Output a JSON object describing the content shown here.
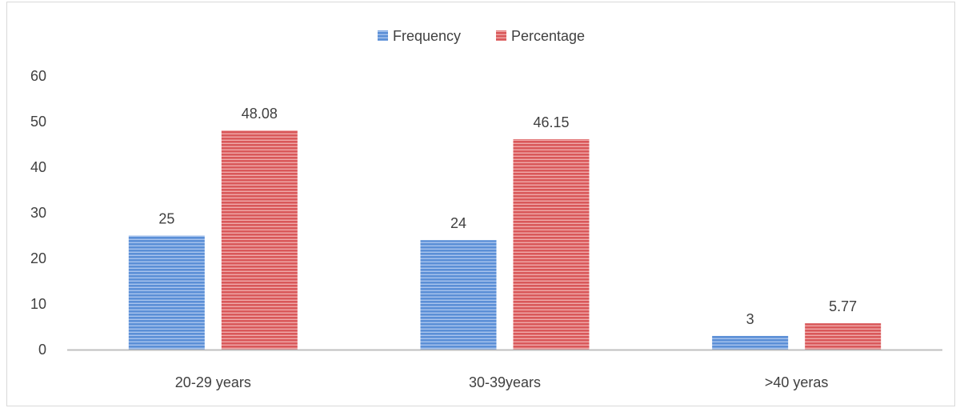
{
  "chart_data": {
    "type": "bar",
    "categories": [
      "20-29 years",
      "30-39years",
      ">40 yeras"
    ],
    "series": [
      {
        "name": "Frequency",
        "values": [
          25,
          24,
          3
        ],
        "labels": [
          "25",
          "24",
          "3"
        ],
        "color": "#5b8fd6"
      },
      {
        "name": "Percentage",
        "values": [
          48.08,
          46.15,
          5.77
        ],
        "labels": [
          "48.08",
          "46.15",
          "5.77"
        ],
        "color": "#d9585a"
      }
    ],
    "title": "",
    "xlabel": "",
    "ylabel": "",
    "ylim": [
      0,
      60
    ],
    "yticks": [
      "0",
      "10",
      "20",
      "30",
      "40",
      "50",
      "60"
    ],
    "grid": false,
    "legend": "top"
  }
}
